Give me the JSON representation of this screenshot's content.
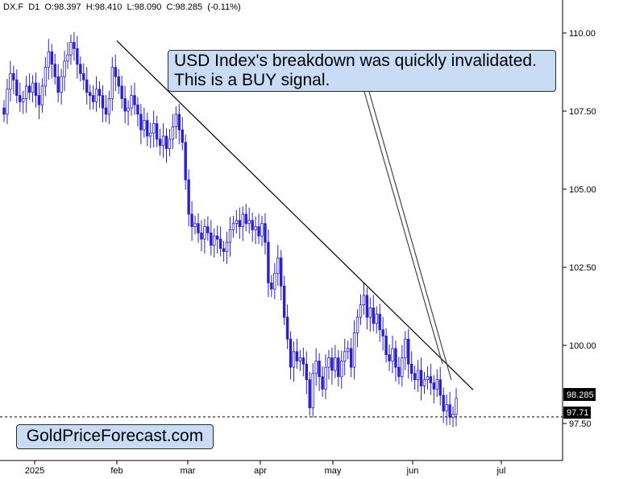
{
  "header": {
    "symbol": "DX.F",
    "timeframe": "D1",
    "open": "O:98.397",
    "high": "H:98.410",
    "low": "L:98.090",
    "close": "C:98.285",
    "change": "(-0.11%)"
  },
  "annotation": {
    "line1": "USD Index's breakdown was quickly invalidated.",
    "line2": "This is a BUY signal."
  },
  "branding": {
    "text": "GoldPriceForecast.com"
  },
  "colors": {
    "candle": "#2b1fd1",
    "accent_box": "#c9dcf5",
    "trendline": "#000000"
  },
  "chart_data": {
    "type": "candlestick",
    "y_axis_side": "right",
    "ylim": [
      96.6,
      110.8
    ],
    "y_ticks": [
      "110.00",
      "107.50",
      "105.00",
      "102.50",
      "100.00",
      "97.50"
    ],
    "x_ticks": [
      "2025",
      "feb",
      "mar",
      "apr",
      "may",
      "jun",
      "jul"
    ],
    "current_price_label": "98.285",
    "support_level_label": "97.71",
    "support_level": 97.71,
    "grid": false,
    "legend": "none",
    "close_series": [
      107.4,
      108.2,
      108.7,
      108.5,
      108.0,
      107.8,
      107.9,
      108.3,
      108.1,
      108.4,
      108.0,
      107.7,
      108.3,
      108.9,
      109.4,
      109.0,
      108.6,
      108.1,
      108.6,
      109.1,
      109.3,
      109.7,
      109.5,
      109.0,
      108.7,
      108.5,
      108.1,
      108.0,
      107.8,
      108.2,
      108.0,
      107.6,
      107.4,
      107.9,
      108.9,
      108.6,
      108.3,
      107.9,
      107.5,
      107.6,
      108.0,
      107.7,
      107.4,
      106.9,
      107.2,
      106.7,
      106.8,
      107.1,
      106.6,
      106.4,
      106.7,
      106.3,
      106.6,
      107.0,
      107.4,
      106.9,
      106.5,
      105.3,
      104.2,
      103.8,
      103.9,
      103.6,
      103.4,
      103.8,
      103.6,
      103.2,
      103.5,
      103.4,
      103.1,
      103.0,
      103.3,
      103.7,
      103.9,
      104.0,
      103.8,
      104.2,
      103.9,
      104.0,
      103.7,
      103.8,
      103.5,
      103.9,
      103.3,
      102.0,
      101.8,
      102.3,
      102.8,
      101.9,
      100.9,
      100.2,
      99.3,
      99.8,
      99.5,
      99.6,
      99.4,
      98.9,
      98.0,
      99.1,
      99.5,
      99.0,
      98.6,
      99.3,
      99.6,
      99.2,
      99.6,
      99.0,
      99.5,
      99.8,
      99.9,
      99.3,
      100.4,
      100.9,
      101.3,
      101.6,
      100.9,
      101.2,
      100.7,
      101.0,
      100.5,
      100.3,
      99.7,
      99.5,
      99.9,
      99.3,
      99.0,
      99.6,
      100.2,
      99.4,
      99.1,
      98.9,
      99.2,
      98.7,
      98.9,
      99.0,
      98.8,
      98.6,
      98.9,
      98.4,
      97.9,
      98.1,
      97.7,
      97.8,
      98.3
    ],
    "trendline": {
      "start": [
        "feb",
        109.75
      ],
      "end": [
        "jun",
        98.6
      ]
    }
  }
}
